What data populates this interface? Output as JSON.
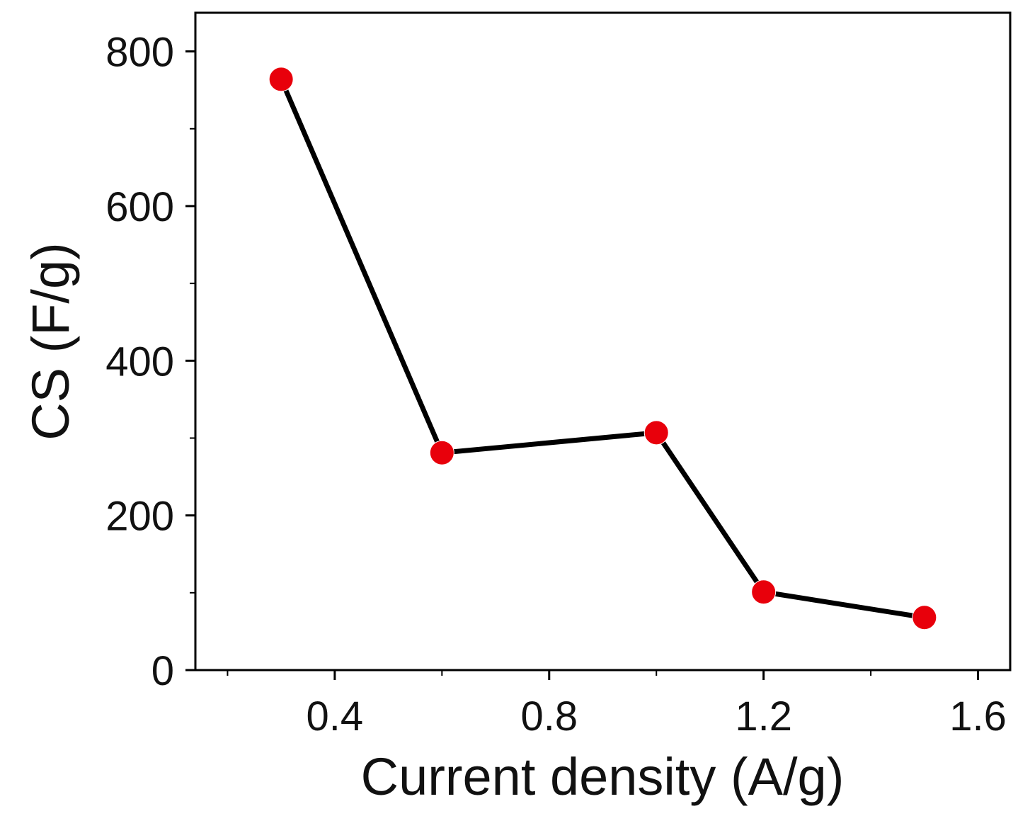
{
  "chart_data": {
    "type": "line",
    "title": "",
    "xlabel": "Current density (A/g)",
    "ylabel": "CS (F/g)",
    "xlim": [
      0.14,
      1.66
    ],
    "ylim": [
      0,
      850
    ],
    "x_ticks": [
      {
        "value": 0.4,
        "label": "0.4"
      },
      {
        "value": 0.8,
        "label": "0.8"
      },
      {
        "value": 1.2,
        "label": "1.2"
      },
      {
        "value": 1.6,
        "label": "1.6"
      }
    ],
    "x_minor_ticks": [
      0.2,
      0.6,
      1.0,
      1.4
    ],
    "y_ticks": [
      {
        "value": 0,
        "label": "0"
      },
      {
        "value": 200,
        "label": "200"
      },
      {
        "value": 400,
        "label": "400"
      },
      {
        "value": 600,
        "label": "600"
      },
      {
        "value": 800,
        "label": "800"
      }
    ],
    "y_minor_ticks": [
      100,
      300,
      500,
      700
    ],
    "series": [
      {
        "name": "CS",
        "x": [
          0.3,
          0.6,
          1.0,
          1.2,
          1.5
        ],
        "values": [
          764,
          281,
          307,
          101,
          68
        ],
        "line_color": "#000000",
        "marker_color": "#e8000b"
      }
    ],
    "grid": false,
    "legend": "none"
  }
}
